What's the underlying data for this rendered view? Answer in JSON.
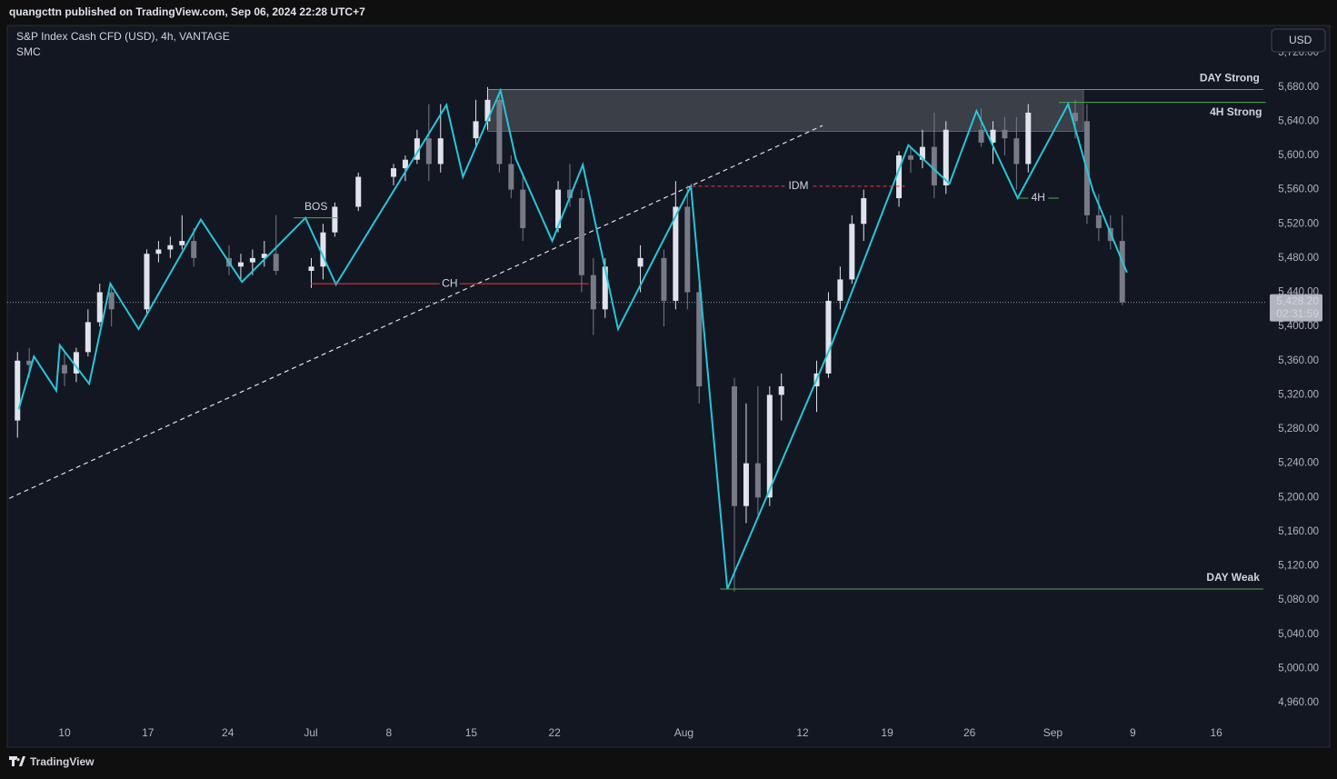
{
  "header": {
    "publisher": "quangcttn published on TradingView.com, Sep 06, 2024 22:28 UTC+7",
    "footer": "TradingView",
    "currency_button": "USD"
  },
  "chart_data": {
    "type": "candlestick",
    "title": "S&P Index Cash CFD (USD), 4h, VANTAGE",
    "subtitle": "SMC",
    "up_color": "#e0e3eb",
    "down_color": "#787b86",
    "grid": false,
    "x": [
      -4,
      -3,
      0,
      1,
      2,
      3,
      4,
      7,
      8,
      9,
      10,
      11,
      14,
      15,
      16,
      17,
      18,
      21,
      22,
      23,
      25,
      28,
      29,
      30,
      31,
      32,
      35,
      36,
      37,
      38,
      39,
      42,
      43,
      44,
      45,
      46,
      49,
      51,
      52,
      53,
      54,
      57,
      58,
      59,
      60,
      61,
      64,
      65,
      66,
      67,
      68,
      71,
      72,
      73,
      74,
      75,
      78,
      79,
      80,
      81,
      82,
      86,
      87,
      88,
      89,
      90
    ],
    "open": [
      5290,
      5360,
      5355,
      5345,
      5370,
      5405,
      5440,
      5420,
      5485,
      5490,
      5495,
      5500,
      5480,
      5470,
      5475,
      5480,
      5485,
      5465,
      5470,
      5510,
      5540,
      5575,
      5585,
      5595,
      5620,
      5590,
      5620,
      5640,
      5665,
      5590,
      5560,
      5515,
      5560,
      5550,
      5460,
      5420,
      5470,
      5480,
      5430,
      5540,
      5440,
      5330,
      5190,
      5240,
      5200,
      5320,
      5330,
      5345,
      5430,
      5455,
      5520,
      5550,
      5600,
      5595,
      5610,
      5565,
      5630,
      5615,
      5630,
      5620,
      5590,
      5650,
      5640,
      5530,
      5515,
      5500
    ],
    "high": [
      5370,
      5375,
      5370,
      5375,
      5420,
      5450,
      5450,
      5490,
      5500,
      5505,
      5530,
      5515,
      5495,
      5485,
      5490,
      5500,
      5530,
      5480,
      5520,
      5545,
      5580,
      5590,
      5600,
      5630,
      5660,
      5660,
      5665,
      5680,
      5670,
      5600,
      5580,
      5570,
      5590,
      5560,
      5480,
      5480,
      5495,
      5490,
      5570,
      5565,
      5450,
      5340,
      5310,
      5330,
      5330,
      5345,
      5360,
      5440,
      5470,
      5530,
      5560,
      5605,
      5610,
      5630,
      5650,
      5640,
      5655,
      5640,
      5645,
      5645,
      5660,
      5665,
      5660,
      5555,
      5530,
      5530
    ],
    "low": [
      5270,
      5340,
      5330,
      5335,
      5365,
      5400,
      5400,
      5415,
      5475,
      5480,
      5490,
      5470,
      5460,
      5455,
      5460,
      5470,
      5460,
      5445,
      5455,
      5505,
      5535,
      5565,
      5570,
      5590,
      5570,
      5580,
      5610,
      5630,
      5580,
      5550,
      5500,
      5510,
      5540,
      5440,
      5390,
      5410,
      5440,
      5400,
      5420,
      5420,
      5310,
      5090,
      5170,
      5180,
      5190,
      5290,
      5300,
      5340,
      5420,
      5450,
      5500,
      5540,
      5580,
      5585,
      5550,
      5555,
      5610,
      5590,
      5600,
      5560,
      5580,
      5620,
      5520,
      5500,
      5490,
      5425
    ],
    "close": [
      5360,
      5355,
      5345,
      5370,
      5405,
      5440,
      5420,
      5485,
      5490,
      5495,
      5500,
      5480,
      5470,
      5475,
      5480,
      5485,
      5465,
      5470,
      5510,
      5540,
      5575,
      5585,
      5595,
      5620,
      5590,
      5620,
      5640,
      5665,
      5590,
      5560,
      5515,
      5560,
      5550,
      5460,
      5420,
      5470,
      5480,
      5430,
      5540,
      5440,
      5330,
      5190,
      5240,
      5200,
      5320,
      5330,
      5345,
      5430,
      5455,
      5520,
      5550,
      5600,
      5595,
      5610,
      5565,
      5630,
      5615,
      5630,
      5620,
      5590,
      5650,
      5640,
      5530,
      5515,
      5500,
      5428.2
    ],
    "zigzag": {
      "color": "#26c6da",
      "x": [
        -3.9,
        -2.6,
        -0.7,
        -0.4,
        2.1,
        3.9,
        6.3,
        11.6,
        15.1,
        20.5,
        23.1,
        32.5,
        33.9,
        37.1,
        38.4,
        41.5,
        44.1,
        47.1,
        53.3,
        56.4,
        65.3,
        71.8,
        75.3,
        77.6,
        81.1,
        85.4,
        87.5,
        90.4
      ],
      "values": [
        5303,
        5365,
        5325,
        5378,
        5333,
        5450,
        5397,
        5525,
        5452,
        5527,
        5449,
        5659,
        5575,
        5676,
        5596,
        5500,
        5589,
        5397,
        5564,
        5093,
        5380,
        5612,
        5567,
        5652,
        5550,
        5660,
        5559,
        5463
      ]
    },
    "trendline": {
      "color": "#e0e3eb",
      "x": [
        -4.7,
        64.5
      ],
      "values": [
        5199,
        5635
      ]
    },
    "zone": {
      "color": "#4a4d56",
      "x": [
        36.0,
        86.7
      ],
      "top": 5677,
      "bottom": 5628
    },
    "levels": [
      {
        "label": "DAY Strong",
        "value": 5677,
        "x": [
          36.0,
          102.0
        ],
        "color": "#4caf50",
        "text_color": "#ffffff",
        "text_pos": "above",
        "align": "end",
        "dash": false
      },
      {
        "label": "4H Strong",
        "value": 5662,
        "x": [
          84.6,
          102.2
        ],
        "color": "#4caf50",
        "text_color": "#ffffff",
        "text_pos": "below",
        "align": "end",
        "dash": false
      },
      {
        "label": "DAY Weak",
        "value": 5093,
        "x": [
          55.8,
          102.0
        ],
        "color": "#4caf50",
        "text_color": "#ffffff",
        "text_pos": "above",
        "align": "end",
        "dash": false
      },
      {
        "label": "BOS",
        "value": 5527,
        "x": [
          19.5,
          23.3
        ],
        "color": "#4caf50",
        "text_color": "#4caf50",
        "text_pos": "above",
        "align": "middle",
        "dash": false
      },
      {
        "label": "CH",
        "value": 5450,
        "x": [
          20.96,
          44.6
        ],
        "color": "#f23645",
        "text_color": "#f23645",
        "text_pos": "on",
        "align": "middle",
        "dash": false
      },
      {
        "label": "IDM",
        "value": 5564,
        "x": [
          53.4,
          71.5
        ],
        "color": "#f23645",
        "text_color": "#ffeb3b",
        "text_pos": "on",
        "align": "middle",
        "dash": true
      },
      {
        "label": "4H",
        "value": 5550,
        "x": [
          81.1,
          84.6
        ],
        "color": "#4caf50",
        "text_color": "#4caf50",
        "text_pos": "on",
        "align": "middle",
        "dash": false
      }
    ],
    "price_line": {
      "value": 5428.2,
      "label": "5,428.20",
      "countdown": "02:31:59"
    },
    "xlim": [
      -4.87,
      102.24
    ],
    "xticks": [
      {
        "value": 0,
        "label": "10"
      },
      {
        "value": 7.1,
        "label": "17"
      },
      {
        "value": 13.9,
        "label": "24"
      },
      {
        "value": 20.96,
        "label": "Jul"
      },
      {
        "value": 27.6,
        "label": "8"
      },
      {
        "value": 34.6,
        "label": "15"
      },
      {
        "value": 41.7,
        "label": "22"
      },
      {
        "value": 52.7,
        "label": "Aug"
      },
      {
        "value": 62.8,
        "label": "12"
      },
      {
        "value": 70.0,
        "label": "19"
      },
      {
        "value": 77.0,
        "label": "26"
      },
      {
        "value": 84.1,
        "label": "Sep"
      },
      {
        "value": 90.9,
        "label": "9"
      },
      {
        "value": 98.0,
        "label": "16"
      }
    ],
    "ylim": [
      4908,
      5752
    ],
    "yticks": [
      {
        "value": 4960,
        "label": "4,960.00"
      },
      {
        "value": 5000,
        "label": "5,000.00"
      },
      {
        "value": 5040,
        "label": "5,040.00"
      },
      {
        "value": 5080,
        "label": "5,080.00"
      },
      {
        "value": 5120,
        "label": "5,120.00"
      },
      {
        "value": 5160,
        "label": "5,160.00"
      },
      {
        "value": 5200,
        "label": "5,200.00"
      },
      {
        "value": 5240,
        "label": "5,240.00"
      },
      {
        "value": 5280,
        "label": "5,280.00"
      },
      {
        "value": 5320,
        "label": "5,320.00"
      },
      {
        "value": 5360,
        "label": "5,360.00"
      },
      {
        "value": 5400,
        "label": "5,400.00"
      },
      {
        "value": 5440,
        "label": "5,440.00"
      },
      {
        "value": 5480,
        "label": "5,480.00"
      },
      {
        "value": 5520,
        "label": "5,520.00"
      },
      {
        "value": 5560,
        "label": "5,560.00"
      },
      {
        "value": 5600,
        "label": "5,600.00"
      },
      {
        "value": 5640,
        "label": "5,640.00"
      },
      {
        "value": 5680,
        "label": "5,680.00"
      },
      {
        "value": 5720,
        "label": "5,720.00"
      }
    ]
  }
}
